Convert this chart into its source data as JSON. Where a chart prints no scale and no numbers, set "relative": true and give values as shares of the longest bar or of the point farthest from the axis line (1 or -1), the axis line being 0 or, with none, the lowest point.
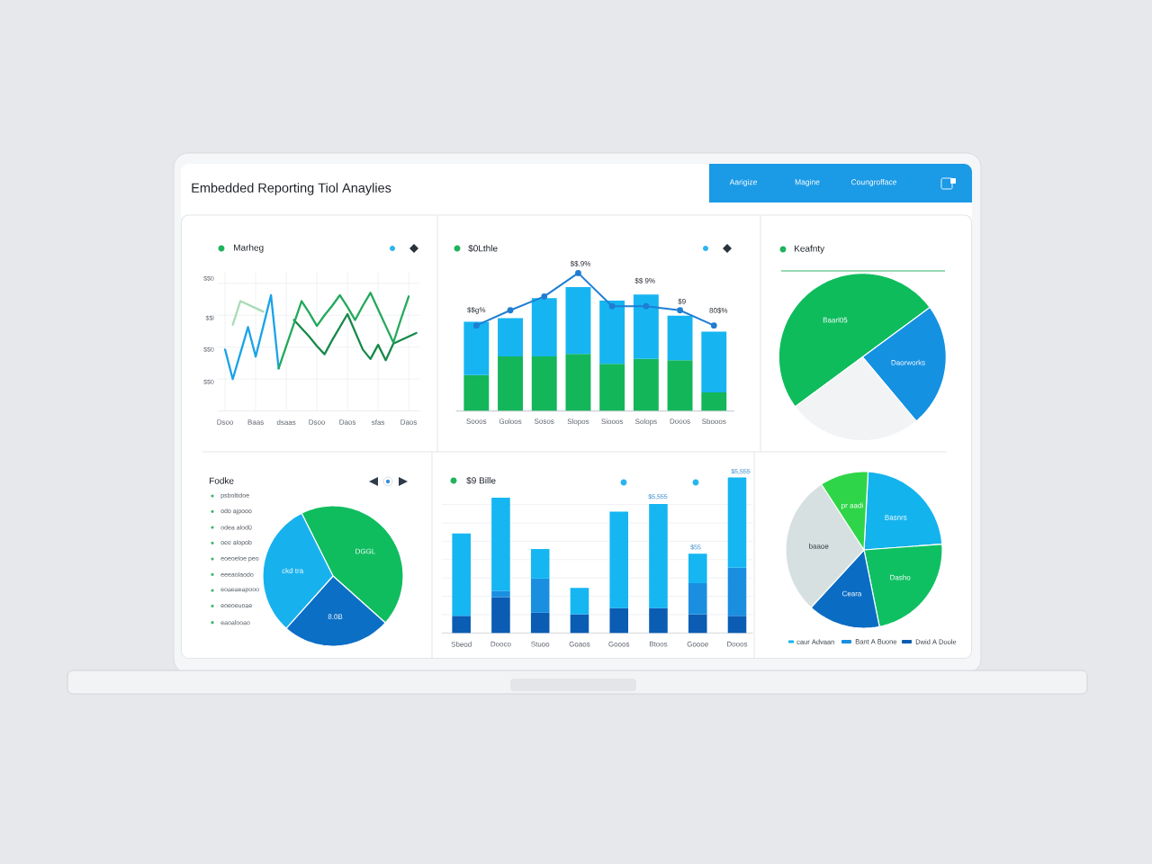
{
  "chart_data": [
    {
      "type": "other",
      "title": "Embedded Reporting Tiol Anaylies",
      "annotations": [
        "Aarigize",
        "Magine",
        "Coungrofface"
      ]
    },
    {
      "type": "line",
      "title": "Marheg",
      "relative": true,
      "grid": true,
      "categories": [
        "Dsoo",
        null,
        null,
        null,
        "Baas",
        null,
        null,
        null,
        "dsaas",
        null,
        null,
        null,
        "Dsoo",
        null,
        null,
        null,
        "Daos",
        null,
        null,
        null,
        "sfas",
        null,
        null,
        null,
        "Daos",
        null
      ],
      "series": [
        {
          "color": "#a9dcb6",
          "values": [
            null,
            0.73,
            0.93,
            0.9,
            0.87,
            0.84,
            null,
            null,
            null,
            null,
            null,
            null,
            null,
            null,
            null,
            null,
            null,
            null,
            null,
            null,
            null,
            null,
            null,
            null,
            null,
            null
          ]
        },
        {
          "color": "#1aa3e8",
          "values": [
            0.52,
            0.27,
            0.49,
            0.71,
            0.46,
            0.72,
            0.98,
            0.36,
            null,
            null,
            null,
            null,
            null,
            null,
            null,
            null,
            null,
            null,
            null,
            null,
            null,
            null,
            null,
            null,
            null,
            null
          ]
        },
        {
          "color": "#17894a",
          "values": [
            null,
            null,
            null,
            null,
            null,
            null,
            null,
            null,
            null,
            0.77,
            0.7,
            0.63,
            0.55,
            0.48,
            0.6,
            0.71,
            0.82,
            0.67,
            0.52,
            0.44,
            0.56,
            0.43,
            0.57,
            0.6,
            0.63,
            0.66
          ]
        },
        {
          "color": "#22a95c",
          "values": [
            null,
            null,
            null,
            null,
            null,
            null,
            null,
            0.36,
            0.55,
            0.74,
            0.93,
            0.83,
            0.72,
            0.81,
            0.89,
            0.98,
            0.88,
            0.77,
            0.89,
            1.0,
            0.86,
            0.72,
            0.58,
            0.78,
            0.97,
            null
          ]
        }
      ],
      "annotations": [
        "$$0",
        "$$l",
        "$$0",
        "$$0"
      ]
    },
    {
      "type": "bar",
      "title": "$0Lthle",
      "relative": true,
      "stacked": true,
      "categories": [
        "Sooos",
        "Goloos",
        "Sosos",
        "Slopos",
        "Siooos",
        "Solops",
        "Dooos",
        "Sbooos"
      ],
      "series": [
        {
          "color": "#13b659",
          "values": [
            0.29,
            0.44,
            0.44,
            0.46,
            0.38,
            0.42,
            0.41,
            0.15
          ]
        },
        {
          "color": "#16b5f1",
          "values": [
            0.43,
            0.31,
            0.47,
            0.54,
            0.51,
            0.52,
            0.36,
            0.49
          ]
        }
      ]
    },
    {
      "type": "line",
      "relative": true,
      "marker": "circle",
      "categories": [
        null,
        null,
        null,
        null,
        null,
        null,
        null,
        null
      ],
      "series": [
        {
          "color": "#1f7ed3",
          "values": [
            0.62,
            0.73,
            0.83,
            1.0,
            0.76,
            0.76,
            0.73,
            0.62
          ]
        }
      ],
      "annotations": [
        "$$g%",
        "$$.9%",
        "$$ 9%",
        "$9",
        "80$%"
      ]
    },
    {
      "type": "pie",
      "title": "Keafnty",
      "categories": [
        "Baarl05",
        "Daorworks",
        null
      ],
      "values": [
        50,
        24,
        26
      ],
      "colors": [
        "#0ebc5c",
        "#1591e2",
        "#f1f3f5"
      ]
    },
    {
      "type": "pie",
      "title": "Fodke",
      "categories": [
        "DGGL",
        "8.0B",
        "ckd tra"
      ],
      "values": [
        44,
        25,
        31
      ],
      "colors": [
        "#0fbd5f",
        "#0b6fc6",
        "#17b2ee"
      ],
      "annotations": [
        "psboltidoe",
        "odo ajpooo",
        "odea alod0",
        "oee alopob",
        "eoeoeloe peo",
        "eeeaolaodo",
        "eoaeaeapooo",
        "eoeoeuoae",
        "eaoalooao"
      ]
    },
    {
      "type": "bar",
      "title": "$9 Bille",
      "relative": true,
      "stacked": true,
      "grid": "y",
      "categories": [
        "Sbeod",
        "Dooco",
        "Stuoo",
        "Goaos",
        "Gooos",
        "Btoos",
        "Goooe",
        "Dooos"
      ],
      "series": [
        {
          "color": "#0b5cb3",
          "values": [
            0.11,
            0.23,
            0.13,
            0.12,
            0.16,
            0.16,
            0.12,
            0.11
          ]
        },
        {
          "color": "#1a8fe0",
          "values": [
            0,
            0.04,
            0.22,
            0,
            0,
            0,
            0.2,
            0.31
          ]
        },
        {
          "color": "#15b6f2",
          "values": [
            0.53,
            0.6,
            0.19,
            0.17,
            0.62,
            0.67,
            0.19,
            0.58
          ]
        }
      ],
      "annotations": [
        "$5,555",
        "$55",
        "$5,555"
      ]
    },
    {
      "type": "pie",
      "categories": [
        "Basnrs",
        "Dasho",
        "Ceara",
        "baaoe",
        "pr aadi"
      ],
      "values": [
        23,
        23,
        15,
        29,
        10
      ],
      "colors": [
        "#13b3ee",
        "#0fc062",
        "#0b6cc4",
        "#d6e0e1",
        "#2fd548"
      ],
      "annotations": [
        "caur Advaan",
        "Bant A Buone",
        "Dwid A Doole"
      ]
    }
  ]
}
